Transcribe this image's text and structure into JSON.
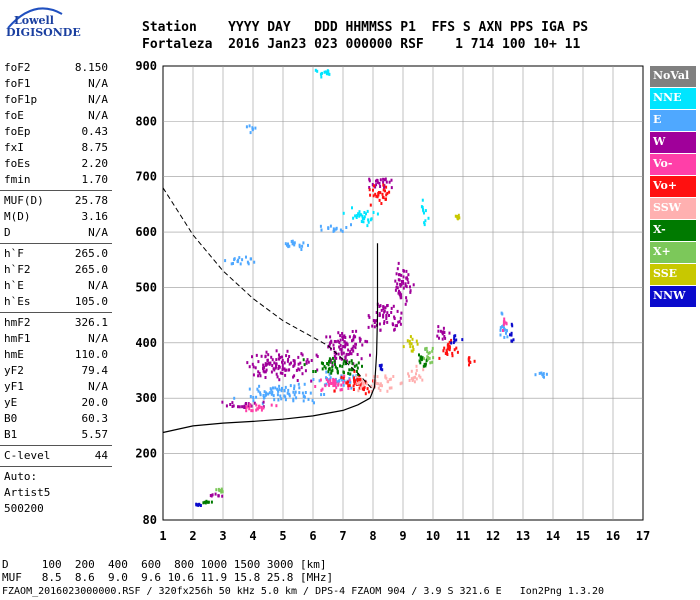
{
  "logo": {
    "line1": "Lowell",
    "line2": "DIGISONDE"
  },
  "header": {
    "row1": "Station    YYYY DAY   DDD HHMMSS P1  FFS S AXN PPS IGA PS",
    "row2": "Fortaleza  2016 Jan23 023 000000 RSF    1 714 100 10+ 11"
  },
  "params": [
    {
      "name": "foF2",
      "value": "8.150"
    },
    {
      "name": "foF1",
      "value": "N/A"
    },
    {
      "name": "foF1p",
      "value": "N/A"
    },
    {
      "name": "foE",
      "value": "N/A"
    },
    {
      "name": "foEp",
      "value": "0.43"
    },
    {
      "name": "fxI",
      "value": "8.75"
    },
    {
      "name": "foEs",
      "value": "2.20"
    },
    {
      "name": "fmin",
      "value": "1.70"
    },
    {
      "sep": true
    },
    {
      "name": "MUF(D)",
      "value": "25.78"
    },
    {
      "name": "M(D)",
      "value": "3.16"
    },
    {
      "name": "D",
      "value": "N/A"
    },
    {
      "sep": true
    },
    {
      "name": "h`F",
      "value": "265.0"
    },
    {
      "name": "h`F2",
      "value": "265.0"
    },
    {
      "name": "h`E",
      "value": "N/A"
    },
    {
      "name": "h`Es",
      "value": "105.0"
    },
    {
      "sep": true
    },
    {
      "name": "hmF2",
      "value": "326.1"
    },
    {
      "name": "hmF1",
      "value": "N/A"
    },
    {
      "name": "hmE",
      "value": "110.0"
    },
    {
      "name": "yF2",
      "value": "79.4"
    },
    {
      "name": "yF1",
      "value": "N/A"
    },
    {
      "name": "yE",
      "value": "20.0"
    },
    {
      "name": "B0",
      "value": "60.3"
    },
    {
      "name": "B1",
      "value": "5.57"
    },
    {
      "sep": true
    },
    {
      "name": "C-level",
      "value": "44"
    },
    {
      "sep": true
    },
    {
      "name": "Auto:",
      "value": ""
    },
    {
      "name": "Artist5",
      "value": ""
    },
    {
      "name": "500200",
      "value": ""
    }
  ],
  "legend": [
    {
      "label": "NoVal",
      "bg": "#808080",
      "fg": "#ffffff"
    },
    {
      "label": "NNE",
      "bg": "#00e5ff",
      "fg": "#ffffff"
    },
    {
      "label": "E",
      "bg": "#4fa8ff",
      "fg": "#ffffff"
    },
    {
      "label": "W",
      "bg": "#a0009a",
      "fg": "#ffffff"
    },
    {
      "label": "Vo-",
      "bg": "#ff3fa8",
      "fg": "#ffffff"
    },
    {
      "label": "Vo+",
      "bg": "#ff1010",
      "fg": "#ffffff"
    },
    {
      "label": "SSW",
      "bg": "#ffb0b0",
      "fg": "#ffffff"
    },
    {
      "label": "X-",
      "bg": "#007a00",
      "fg": "#ffffff"
    },
    {
      "label": "X+",
      "bg": "#7cc85a",
      "fg": "#ffffff"
    },
    {
      "label": "SSE",
      "bg": "#c8c800",
      "fg": "#ffffff"
    },
    {
      "label": "NNW",
      "bg": "#0a0acc",
      "fg": "#ffffff"
    }
  ],
  "bottom": {
    "line1": "D     100  200  400  600  800 1000 1500 3000 [km]",
    "line2": "MUF   8.5  8.6  9.0  9.6 10.6 11.9 15.8 25.8 [MHz]",
    "line3": "FZAOM_2016023000000.RSF / 320fx256h 50 kHz 5.0 km / DPS-4 FZAOM 904 / 3.9 S 321.6 E   Ion2Png 1.3.20"
  },
  "chart_data": {
    "type": "scatter",
    "title": "",
    "xlabel": "",
    "ylabel": "",
    "xlim": [
      1,
      17
    ],
    "ylim": [
      80,
      900
    ],
    "xticks": [
      1,
      2,
      3,
      4,
      5,
      6,
      7,
      8,
      9,
      10,
      11,
      12,
      13,
      14,
      15,
      16,
      17
    ],
    "yticks": [
      80,
      200,
      300,
      400,
      500,
      600,
      700,
      800,
      900
    ],
    "grid": true,
    "series": [
      {
        "name": "NNE",
        "color": "#00e5ff",
        "clusters": [
          [
            6.3,
            890,
            0.6,
            15
          ],
          [
            7.6,
            630,
            0.8,
            25
          ],
          [
            9.7,
            640,
            0.2,
            40
          ]
        ]
      },
      {
        "name": "E",
        "color": "#4fa8ff",
        "clusters": [
          [
            3.6,
            550,
            1.0,
            12
          ],
          [
            5.2,
            580,
            1.0,
            12
          ],
          [
            6.8,
            610,
            0.9,
            12
          ],
          [
            3.9,
            790,
            0.3,
            15
          ],
          [
            5,
            310,
            2.2,
            25
          ],
          [
            7,
            335,
            1.4,
            20
          ],
          [
            12.3,
            430,
            0.3,
            40
          ],
          [
            13.6,
            345,
            0.5,
            10
          ]
        ]
      },
      {
        "name": "W",
        "color": "#a0009a",
        "clusters": [
          [
            4.8,
            360,
            1.8,
            45
          ],
          [
            7,
            395,
            1.3,
            50
          ],
          [
            8.4,
            450,
            0.8,
            50
          ],
          [
            9.0,
            510,
            0.5,
            70
          ],
          [
            8.2,
            690,
            0.9,
            20
          ],
          [
            3.7,
            290,
            1.3,
            12
          ],
          [
            2.7,
            125,
            0.5,
            8
          ],
          [
            10.3,
            420,
            0.4,
            25
          ]
        ]
      },
      {
        "name": "Vo-",
        "color": "#ff3fa8",
        "clusters": [
          [
            4.2,
            285,
            1.2,
            12
          ],
          [
            6.6,
            330,
            1.0,
            25
          ],
          [
            12.4,
            440,
            0.2,
            30
          ]
        ]
      },
      {
        "name": "Vo+",
        "color": "#ff1010",
        "clusters": [
          [
            7.3,
            330,
            1.2,
            25
          ],
          [
            8.3,
            670,
            0.8,
            25
          ],
          [
            10.5,
            390,
            0.5,
            35
          ],
          [
            11.2,
            370,
            0.3,
            20
          ]
        ]
      },
      {
        "name": "SSW",
        "color": "#ffb0b0",
        "clusters": [
          [
            8.2,
            330,
            1.2,
            25
          ],
          [
            9.4,
            345,
            0.5,
            25
          ]
        ]
      },
      {
        "name": "X-",
        "color": "#007a00",
        "clusters": [
          [
            6.8,
            360,
            1.6,
            25
          ],
          [
            2.4,
            115,
            0.5,
            5
          ],
          [
            9.6,
            370,
            0.4,
            30
          ]
        ]
      },
      {
        "name": "X+",
        "color": "#7cc85a",
        "clusters": [
          [
            9.8,
            380,
            0.3,
            35
          ],
          [
            2.9,
            135,
            0.3,
            6
          ]
        ]
      },
      {
        "name": "SSE",
        "color": "#c8c800",
        "clusters": [
          [
            9.2,
            400,
            0.4,
            25
          ],
          [
            10.8,
            630,
            0.1,
            10
          ]
        ]
      },
      {
        "name": "NNW",
        "color": "#0a0acc",
        "clusters": [
          [
            10.7,
            410,
            0.3,
            15
          ],
          [
            12.6,
            420,
            0.2,
            30
          ],
          [
            2.1,
            110,
            0.2,
            4
          ],
          [
            8.2,
            360,
            0.2,
            15
          ]
        ]
      }
    ],
    "profile_curve": [
      [
        1,
        238
      ],
      [
        2,
        250
      ],
      [
        3,
        255
      ],
      [
        4,
        258
      ],
      [
        5,
        262
      ],
      [
        6,
        268
      ],
      [
        7,
        278
      ],
      [
        7.5,
        288
      ],
      [
        7.9,
        300
      ],
      [
        8.05,
        320
      ],
      [
        8.12,
        380
      ],
      [
        8.15,
        450
      ],
      [
        8.15,
        580
      ]
    ],
    "muf_curve": [
      [
        1,
        680
      ],
      [
        2,
        595
      ],
      [
        3,
        530
      ],
      [
        4,
        480
      ],
      [
        5,
        440
      ],
      [
        5.5,
        425
      ],
      [
        6,
        410
      ],
      [
        6.5,
        395
      ],
      [
        7,
        370
      ],
      [
        7.5,
        345
      ],
      [
        8,
        315
      ]
    ]
  }
}
